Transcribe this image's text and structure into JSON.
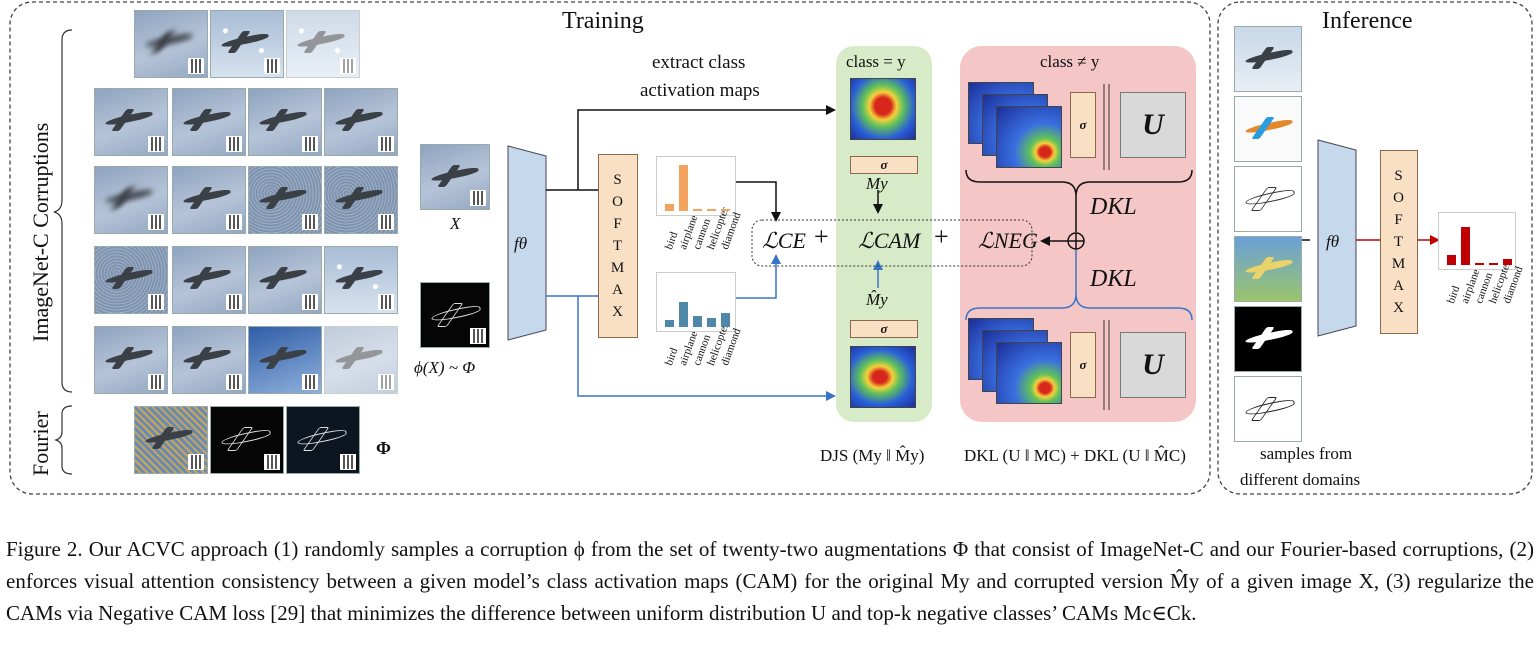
{
  "panels": {
    "training_title": "Training",
    "inference_title": "Inference"
  },
  "left": {
    "corruptions_label": "ImageNet-C Corruptions",
    "fourier_label": "Fourier",
    "phi_symbol": "Φ"
  },
  "inputs": {
    "x_label": "X",
    "phi_x_label": "ϕ(X) ~ Φ"
  },
  "model": {
    "f_theta": "fθ",
    "softmax_letters": [
      "S",
      "O",
      "F",
      "T",
      "M",
      "A",
      "X"
    ]
  },
  "arrows": {
    "extract_line1": "extract class",
    "extract_line2": "activation maps"
  },
  "classes": [
    "bird",
    "airplane",
    "cannon",
    "helicopter",
    "diamond"
  ],
  "prob_bars": {
    "clean": [
      0.15,
      1.0,
      0.0,
      0.03,
      0.03
    ],
    "corrupted": [
      0.15,
      0.55,
      0.25,
      0.2,
      0.3
    ],
    "inference": [
      0.25,
      0.95,
      0.05,
      0.05,
      0.15
    ],
    "clean_color": "#f2a35e",
    "corrupted_color": "#4e87a8",
    "inference_color": "#c00000"
  },
  "losses": {
    "ce": "ℒCE",
    "cam": "ℒCAM",
    "neg": "ℒNEG",
    "plus": "+"
  },
  "green_panel": {
    "title": "class = y",
    "sigma": "σ",
    "m_y": "My",
    "m_hat_y": "M̂y",
    "bottom_formula": "DJS (My ‖ M̂y)"
  },
  "red_panel": {
    "title": "class ≠ y",
    "sigma": "σ",
    "u": "U",
    "dkl": "DKL",
    "bottom_formula": "DKL (U ‖ MC) + DKL (U ‖ M̂C)"
  },
  "inference": {
    "samples_line1": "samples from",
    "samples_line2": "different domains"
  },
  "caption": {
    "text": "Figure 2. Our ACVC approach (1) randomly samples a corruption ϕ from the set of twenty-two augmentations Φ that consist of ImageNet-C and our Fourier-based corruptions, (2) enforces visual attention consistency between a given model’s class activation maps (CAM) for the original My and corrupted version M̂y of a given image X, (3) regularize the CAMs via Negative CAM loss [29] that minimizes the difference between uniform distribution U and top-k negative classes’ CAMs Mc∈Ck."
  },
  "colors": {
    "green_panel": "#d8ebc8",
    "red_panel": "#f4c6c6",
    "f_theta_fill": "#c6d9ec",
    "blue_arrow": "#3a74c9",
    "red_arrow": "#c00000",
    "cite": "#22b222"
  }
}
